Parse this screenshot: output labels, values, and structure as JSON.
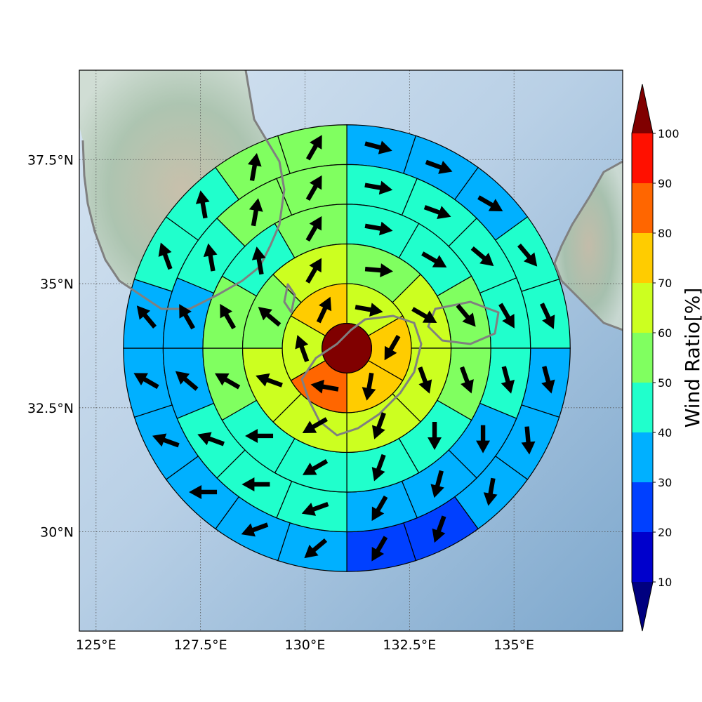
{
  "chart_data": {
    "type": "heatmap",
    "subtype": "polar-sector wind ratio map with wind-direction arrows",
    "x_axis": {
      "range": [
        124.6,
        137.6
      ],
      "ticks": [
        125,
        127.5,
        130,
        132.5,
        135
      ],
      "tick_labels": [
        "125°E",
        "127.5°E",
        "130°E",
        "132.5°E",
        "135°E"
      ]
    },
    "y_axis": {
      "range": [
        28.0,
        39.3
      ],
      "ticks": [
        30,
        32.5,
        35,
        37.5
      ],
      "tick_labels": [
        "30°N",
        "32.5°N",
        "35°N",
        "37.5°N"
      ]
    },
    "grid": true,
    "center": {
      "lon": 131.0,
      "lat": 33.7,
      "value": 100
    },
    "ring_radii_deg": [
      0.5,
      1.3,
      2.1,
      2.9,
      3.7,
      4.5
    ],
    "rings": [
      {
        "sectors": 6,
        "values": [
          65,
          75,
          75,
          85,
          65,
          70
        ],
        "arrow_dir_deg": [
          100,
          210,
          190,
          280,
          340,
          25
        ]
      },
      {
        "sectors": 8,
        "values": [
          55,
          65,
          60,
          65,
          65,
          60,
          55,
          60
        ],
        "arrow_dir_deg": [
          95,
          120,
          160,
          200,
          240,
          290,
          310,
          30
        ]
      },
      {
        "sectors": 12,
        "values": [
          45,
          45,
          55,
          55,
          45,
          45,
          40,
          45,
          55,
          55,
          45,
          55
        ],
        "arrow_dir_deg": [
          100,
          120,
          140,
          160,
          180,
          200,
          240,
          270,
          300,
          330,
          350,
          30
        ]
      },
      {
        "sectors": 16,
        "values": [
          45,
          45,
          45,
          45,
          45,
          35,
          35,
          35,
          45,
          45,
          45,
          35,
          35,
          45,
          55,
          55
        ],
        "arrow_dir_deg": [
          100,
          110,
          130,
          150,
          165,
          180,
          195,
          210,
          250,
          270,
          290,
          310,
          330,
          350,
          10,
          30
        ]
      },
      {
        "sectors": 20,
        "values": [
          35,
          35,
          35,
          45,
          45,
          35,
          35,
          35,
          25,
          25,
          35,
          35,
          35,
          35,
          35,
          35,
          45,
          45,
          55,
          55
        ],
        "arrow_dir_deg": [
          105,
          110,
          120,
          140,
          155,
          165,
          175,
          190,
          200,
          210,
          230,
          250,
          270,
          290,
          300,
          320,
          340,
          350,
          10,
          30
        ]
      },
      {
        "sectors": 24,
        "values": [
          35,
          25,
          35,
          35,
          35,
          35,
          35,
          25,
          25,
          25,
          35,
          25,
          35,
          35,
          35,
          35,
          35,
          25,
          35,
          35,
          45,
          55,
          55,
          45
        ],
        "arrow_dir_deg": [
          100,
          105,
          110,
          120,
          140,
          150,
          165,
          170,
          180,
          195,
          200,
          220,
          235,
          250,
          255,
          270,
          300,
          320,
          330,
          340,
          350,
          10,
          25,
          40
        ]
      }
    ],
    "colorbar": {
      "label": "Wind Ratio[%]",
      "tick_labels": [
        "10",
        "20",
        "30",
        "40",
        "50",
        "60",
        "70",
        "80",
        "90",
        "100"
      ],
      "levels": [
        10,
        20,
        30,
        40,
        50,
        60,
        70,
        80,
        90,
        100
      ],
      "colors": [
        "#0000cc",
        "#0040ff",
        "#00b0ff",
        "#20ffcc",
        "#80ff60",
        "#ccff20",
        "#ffcc00",
        "#ff6600",
        "#ff1000"
      ],
      "under_color": "#00007f",
      "over_color": "#800000",
      "extend": "both"
    },
    "colors": {
      "sector_edge": "#000000",
      "arrow": "#000000",
      "coastline": "#808080",
      "sea": "#a9c7e2",
      "land": "#9ab8a0"
    }
  }
}
